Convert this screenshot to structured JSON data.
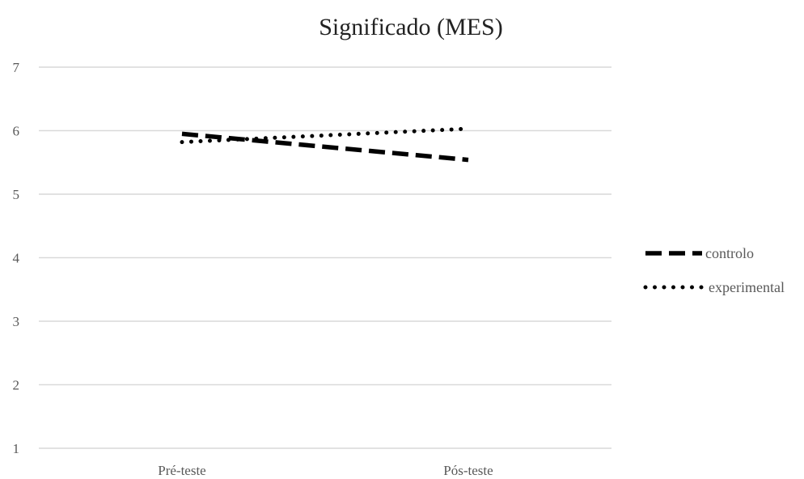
{
  "chart_data": {
    "type": "line",
    "title": "Significado (MES)",
    "xlabel": "",
    "ylabel": "",
    "categories": [
      "Pré-teste",
      "Pós-teste"
    ],
    "y_ticks": [
      "1",
      "2",
      "3",
      "4",
      "5",
      "6",
      "7"
    ],
    "ylim": [
      1,
      7
    ],
    "grid": true,
    "legend_position": "right",
    "series": [
      {
        "name": "controlo",
        "values": [
          5.95,
          5.54
        ],
        "line_style": "dashed",
        "color": "#000000"
      },
      {
        "name": "experimental",
        "values": [
          5.82,
          6.03
        ],
        "line_style": "dotted",
        "color": "#000000"
      }
    ]
  }
}
